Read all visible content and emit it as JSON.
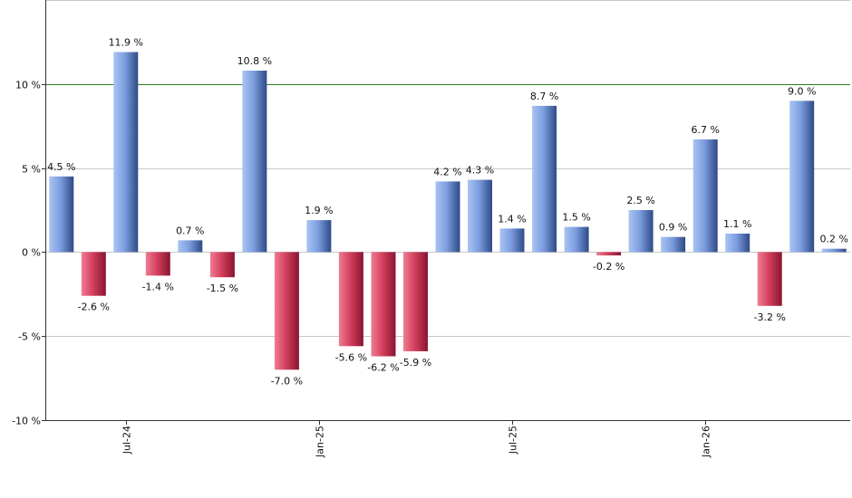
{
  "chart_data": {
    "type": "bar",
    "title": "",
    "xlabel": "",
    "ylabel": "",
    "ylim": [
      -10,
      15
    ],
    "yticks": [
      -10,
      -5,
      0,
      5,
      10
    ],
    "ytick_labels": [
      "-10 %",
      "-5 %",
      "0 %",
      "5 %",
      "10 %"
    ],
    "reference_line": 10,
    "grid": true,
    "value_suffix": " %",
    "xtick_labels": [
      {
        "label": "Jul-24",
        "index": 2
      },
      {
        "label": "Jan-25",
        "index": 8
      },
      {
        "label": "Jul-25",
        "index": 14
      },
      {
        "label": "Jan-26",
        "index": 20
      }
    ],
    "values": [
      4.5,
      -2.6,
      11.9,
      -1.4,
      0.7,
      -1.5,
      10.8,
      -7.0,
      1.9,
      -5.6,
      -6.2,
      -5.9,
      4.2,
      4.3,
      1.4,
      8.7,
      1.5,
      -0.2,
      2.5,
      0.9,
      6.7,
      1.1,
      -3.2,
      9.0,
      0.2
    ],
    "colors": {
      "positive_light": "#a9c4f2",
      "positive_dark": "#2e4a86",
      "negative_light": "#ef7d92",
      "negative_dark": "#8a1430",
      "reference_line": "#2e7d1f",
      "grid": "#c8c8c8"
    }
  }
}
